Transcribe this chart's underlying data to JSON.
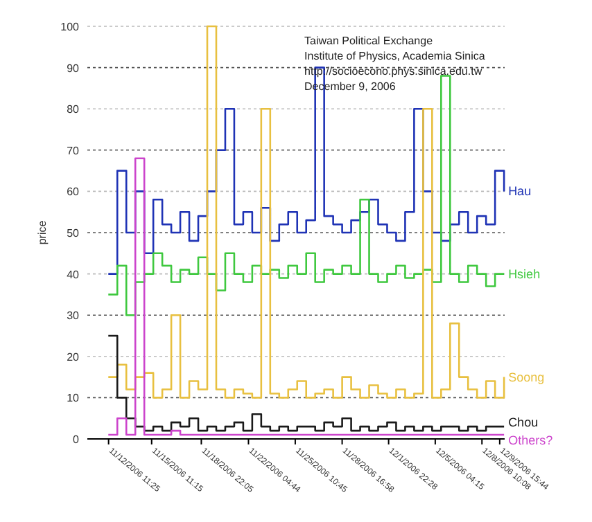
{
  "chart_data": {
    "type": "step",
    "ylabel": "price",
    "annotations": [
      "Taiwan Political Exchange",
      "Institute of Physics, Academia Sinica",
      "http://socioecono.phys.sinica.edu.tw",
      "December 9, 2006"
    ],
    "x": [
      "2006-11-12T11:00",
      "2006-11-13T02:00",
      "2006-11-13T17:00",
      "2006-11-14T08:00",
      "2006-11-14T23:00",
      "2006-11-15T14:00",
      "2006-11-16T05:00",
      "2006-11-16T20:00",
      "2006-11-17T11:00",
      "2006-11-18T02:00",
      "2006-11-18T17:00",
      "2006-11-19T08:00",
      "2006-11-19T23:00",
      "2006-11-20T14:00",
      "2006-11-21T05:00",
      "2006-11-21T20:00",
      "2006-11-22T11:00",
      "2006-11-23T02:00",
      "2006-11-23T17:00",
      "2006-11-24T08:00",
      "2006-11-24T23:00",
      "2006-11-25T14:00",
      "2006-11-26T05:00",
      "2006-11-26T20:00",
      "2006-11-27T11:00",
      "2006-11-28T02:00",
      "2006-11-28T17:00",
      "2006-11-29T08:00",
      "2006-11-29T23:00",
      "2006-11-30T14:00",
      "2006-12-01T05:00",
      "2006-12-01T20:00",
      "2006-12-02T11:00",
      "2006-12-03T02:00",
      "2006-12-03T17:00",
      "2006-12-04T08:00",
      "2006-12-04T23:00",
      "2006-12-05T14:00",
      "2006-12-06T05:00",
      "2006-12-06T20:00",
      "2006-12-07T11:00",
      "2006-12-08T02:00",
      "2006-12-08T17:00",
      "2006-12-09T08:00",
      "2006-12-09T23:00"
    ],
    "xlim": [
      "2006-11-11T00:00",
      "2006-12-10T00:00"
    ],
    "xticks": [
      {
        "value": "2006-11-12T11:25",
        "label": "11/12/2006 11:25"
      },
      {
        "value": "2006-11-15T11:15",
        "label": "11/15/2006 11:15"
      },
      {
        "value": "2006-11-18T22:05",
        "label": "11/18/2006 22:05"
      },
      {
        "value": "2006-11-22T04:44",
        "label": "11/22/2006 04:44"
      },
      {
        "value": "2006-11-25T10:45",
        "label": "11/25/2006 10:45"
      },
      {
        "value": "2006-11-28T16:58",
        "label": "11/28/2006 16:58"
      },
      {
        "value": "2006-12-01T22:28",
        "label": "12/1/2006 22:28"
      },
      {
        "value": "2006-12-05T04:15",
        "label": "12/5/2006 04:15"
      },
      {
        "value": "2006-12-08T10:08",
        "label": "12/8/2006 10:08"
      },
      {
        "value": "2006-12-09T15:44",
        "label": "12/9/2006 15:44"
      }
    ],
    "ylim": [
      0,
      100
    ],
    "yticks": [
      0,
      10,
      20,
      30,
      40,
      50,
      60,
      70,
      80,
      90,
      100
    ],
    "grid": "y",
    "legend": false,
    "line_style": "solid",
    "marker": "none",
    "series": [
      {
        "name": "Hau",
        "color": "#1f33b5",
        "values": [
          40,
          65,
          50,
          60,
          45,
          58,
          52,
          50,
          55,
          48,
          54,
          60,
          70,
          80,
          52,
          55,
          50,
          56,
          48,
          52,
          55,
          50,
          53,
          90,
          54,
          52,
          50,
          53,
          55,
          58,
          52,
          50,
          48,
          55,
          80,
          60,
          50,
          48,
          52,
          55,
          50,
          54,
          52,
          65,
          60
        ]
      },
      {
        "name": "Hsieh",
        "color": "#3fc83f",
        "values": [
          35,
          42,
          30,
          38,
          40,
          45,
          42,
          38,
          41,
          40,
          44,
          40,
          36,
          45,
          40,
          38,
          42,
          40,
          41,
          39,
          42,
          40,
          45,
          38,
          41,
          40,
          42,
          40,
          58,
          40,
          38,
          40,
          42,
          39,
          40,
          41,
          38,
          88,
          40,
          38,
          42,
          40,
          37,
          40,
          40
        ]
      },
      {
        "name": "Soong",
        "color": "#e8c040",
        "values": [
          15,
          18,
          12,
          15,
          16,
          10,
          12,
          30,
          10,
          14,
          12,
          100,
          12,
          10,
          12,
          11,
          10,
          80,
          11,
          10,
          12,
          14,
          10,
          11,
          12,
          10,
          15,
          12,
          10,
          13,
          11,
          10,
          12,
          10,
          11,
          80,
          10,
          12,
          28,
          15,
          12,
          10,
          14,
          10,
          15
        ]
      },
      {
        "name": "Chou",
        "color": "#1a1a1a",
        "values": [
          25,
          10,
          5,
          3,
          2,
          3,
          2,
          4,
          3,
          5,
          2,
          3,
          2,
          3,
          4,
          2,
          6,
          3,
          2,
          3,
          2,
          3,
          3,
          2,
          4,
          3,
          5,
          2,
          3,
          2,
          3,
          4,
          2,
          3,
          2,
          3,
          2,
          3,
          3,
          2,
          3,
          2,
          3,
          3,
          3
        ]
      },
      {
        "name": "Others?",
        "color": "#cc44cc",
        "values": [
          1,
          5,
          1,
          68,
          1,
          1,
          1,
          2,
          1,
          1,
          1,
          1,
          1,
          1,
          1,
          1,
          1,
          1,
          1,
          1,
          1,
          1,
          1,
          1,
          1,
          1,
          1,
          1,
          1,
          1,
          1,
          1,
          1,
          1,
          1,
          1,
          1,
          1,
          1,
          1,
          1,
          1,
          1,
          1,
          1
        ]
      }
    ]
  }
}
